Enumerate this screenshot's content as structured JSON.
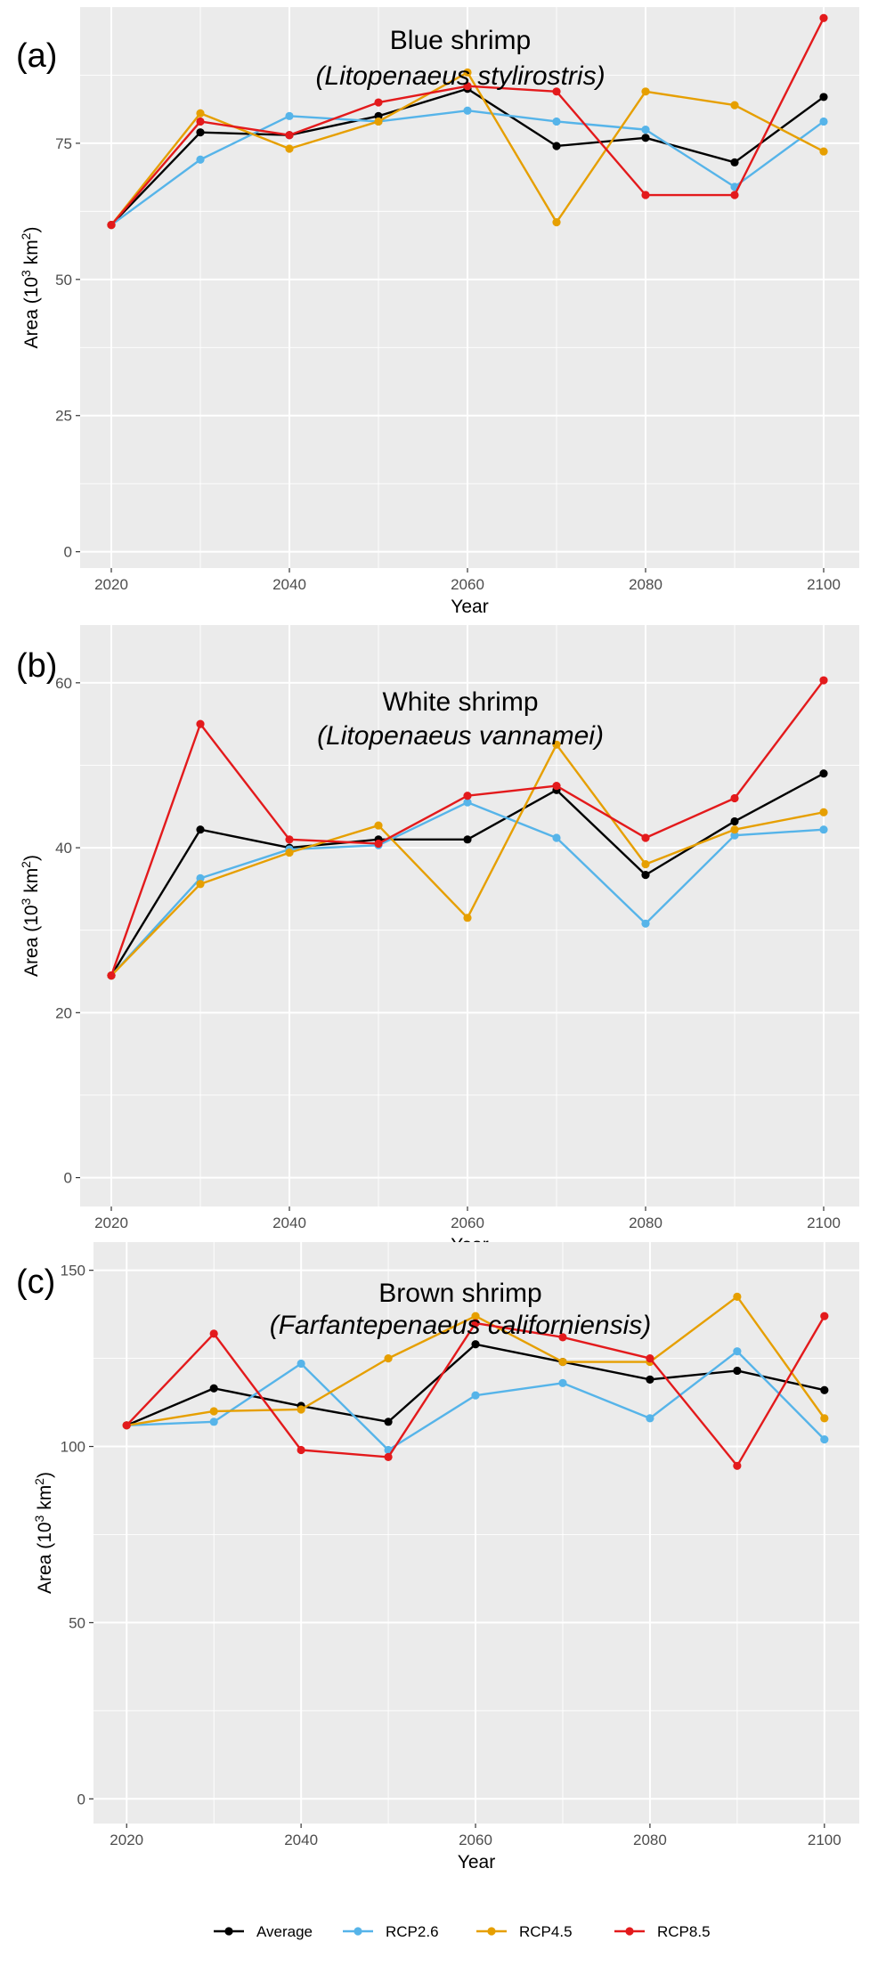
{
  "colors": {
    "panel_bg": "#EBEBEB",
    "grid": "#FFFFFF",
    "axis_text": "#4D4D4D",
    "series": {
      "Average": "#000000",
      "RCP2.6": "#56B4E9",
      "RCP4.5": "#E69F00",
      "RCP8.5": "#E31A1C"
    }
  },
  "legend": {
    "items": [
      "Average",
      "RCP2.6",
      "RCP4.5",
      "RCP8.5"
    ],
    "position": "bottom"
  },
  "chart_data": [
    {
      "type": "line",
      "panel_label": "(a)",
      "title": "Blue shrimp",
      "subtitle": "(Litopenaeus stylirostris)",
      "xlabel": "Year",
      "ylabel_main": "Area (10",
      "ylabel_sup": "3",
      "ylabel_mid": " km",
      "ylabel_sup2": "2",
      "ylabel_end": ")",
      "x": [
        2020,
        2030,
        2040,
        2050,
        2060,
        2070,
        2080,
        2090,
        2100
      ],
      "xticks": [
        2020,
        2040,
        2060,
        2080,
        2100
      ],
      "yticks": [
        0,
        25,
        50,
        75
      ],
      "xlim": [
        2016.5,
        2104
      ],
      "ylim": [
        -3,
        100
      ],
      "series": [
        {
          "name": "Average",
          "values": [
            60,
            77,
            76.5,
            80,
            85,
            74.5,
            76,
            71.5,
            83.5
          ]
        },
        {
          "name": "RCP2.6",
          "values": [
            60,
            72,
            80,
            79,
            81,
            79,
            77.5,
            67,
            79
          ]
        },
        {
          "name": "RCP4.5",
          "values": [
            60,
            80.5,
            74,
            79,
            88,
            60.5,
            84.5,
            82,
            73.5
          ]
        },
        {
          "name": "RCP8.5",
          "values": [
            60,
            79,
            76.5,
            82.5,
            85.5,
            84.5,
            65.5,
            65.5,
            98
          ]
        }
      ]
    },
    {
      "type": "line",
      "panel_label": "(b)",
      "title": "White shrimp",
      "subtitle": "(Litopenaeus vannamei)",
      "xlabel": "Year",
      "ylabel_main": "Area (10",
      "ylabel_sup": "3",
      "ylabel_mid": " km",
      "ylabel_sup2": "2",
      "ylabel_end": ")",
      "x": [
        2020,
        2030,
        2040,
        2050,
        2060,
        2070,
        2080,
        2090,
        2100
      ],
      "xticks": [
        2020,
        2040,
        2060,
        2080,
        2100
      ],
      "yticks": [
        0,
        20,
        40,
        60
      ],
      "xlim": [
        2016.5,
        2104
      ],
      "ylim": [
        -3.5,
        67
      ],
      "series": [
        {
          "name": "Average",
          "values": [
            24.5,
            42.2,
            40,
            41,
            41,
            47,
            36.7,
            43.2,
            49
          ]
        },
        {
          "name": "RCP2.6",
          "values": [
            24.5,
            36.3,
            39.8,
            40.3,
            45.5,
            41.2,
            30.8,
            41.5,
            42.2
          ]
        },
        {
          "name": "RCP4.5",
          "values": [
            24.5,
            35.6,
            39.4,
            42.7,
            31.5,
            52.5,
            38,
            42.2,
            44.3
          ]
        },
        {
          "name": "RCP8.5",
          "values": [
            24.5,
            55,
            41,
            40.5,
            46.3,
            47.5,
            41.2,
            46,
            60.3
          ]
        }
      ]
    },
    {
      "type": "line",
      "panel_label": "(c)",
      "title": "Brown shrimp",
      "subtitle": "(Farfantepenaeus californiensis)",
      "xlabel": "Year",
      "ylabel_main": "Area (10",
      "ylabel_sup": "3",
      "ylabel_mid": " km",
      "ylabel_sup2": "2",
      "ylabel_end": ")",
      "x": [
        2020,
        2030,
        2040,
        2050,
        2060,
        2070,
        2080,
        2090,
        2100
      ],
      "xticks": [
        2020,
        2040,
        2060,
        2080,
        2100
      ],
      "yticks": [
        0,
        50,
        100,
        150
      ],
      "xlim": [
        2016.2,
        2104
      ],
      "ylim": [
        -7,
        158
      ],
      "series": [
        {
          "name": "Average",
          "values": [
            106,
            116.5,
            111.5,
            107,
            129,
            124,
            119,
            121.5,
            116
          ]
        },
        {
          "name": "RCP2.6",
          "values": [
            106,
            107,
            123.5,
            99,
            114.5,
            118,
            108,
            127,
            102
          ]
        },
        {
          "name": "RCP4.5",
          "values": [
            106,
            110,
            110.5,
            125,
            137,
            124,
            124,
            142.5,
            108
          ]
        },
        {
          "name": "RCP8.5",
          "values": [
            106,
            132,
            99,
            97,
            135,
            131,
            125,
            94.5,
            137
          ]
        }
      ]
    }
  ]
}
